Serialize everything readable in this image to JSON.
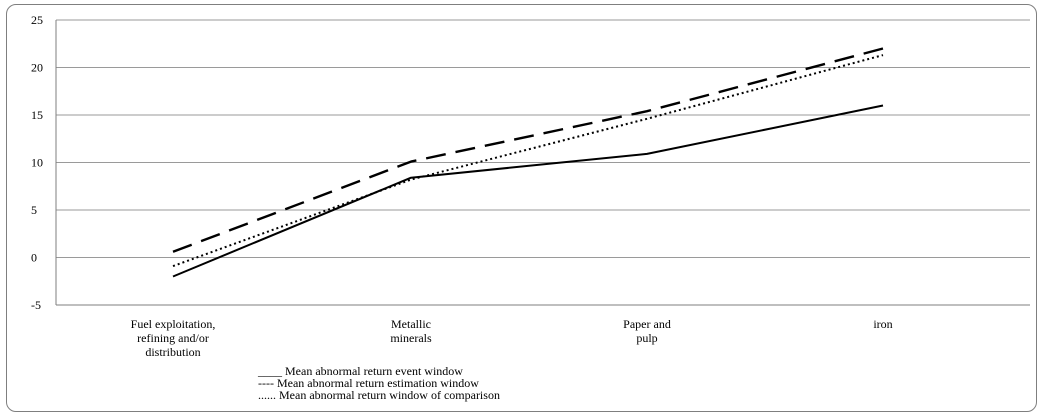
{
  "chart_data": {
    "type": "line",
    "categories": [
      [
        "Fuel exploitation,",
        "refining and/or",
        "distribution"
      ],
      [
        "Metallic",
        "minerals"
      ],
      [
        "Paper and",
        "pulp"
      ],
      [
        "iron"
      ]
    ],
    "ylim": [
      -5,
      25
    ],
    "yticks": [
      -5,
      0,
      5,
      10,
      15,
      20,
      25
    ],
    "ytick_labels": [
      "-5",
      "0",
      "5",
      "10",
      "15",
      "20",
      "25"
    ],
    "grid": true,
    "legend_position": "bottom-left",
    "series": [
      {
        "name": "Mean abnormal return event window",
        "legend_prefix": "____",
        "style": "solid",
        "color": "#000000",
        "values": [
          -2.0,
          8.4,
          10.9,
          16.0
        ]
      },
      {
        "name": "Mean abnormal return estimation window",
        "legend_prefix": "----",
        "style": "dashed",
        "color": "#000000",
        "values": [
          0.6,
          10.1,
          15.4,
          22.0
        ]
      },
      {
        "name": "Mean abnormal return window of comparison",
        "legend_prefix": "......",
        "style": "dotted",
        "color": "#000000",
        "values": [
          -0.9,
          8.2,
          14.6,
          21.3
        ]
      }
    ]
  }
}
